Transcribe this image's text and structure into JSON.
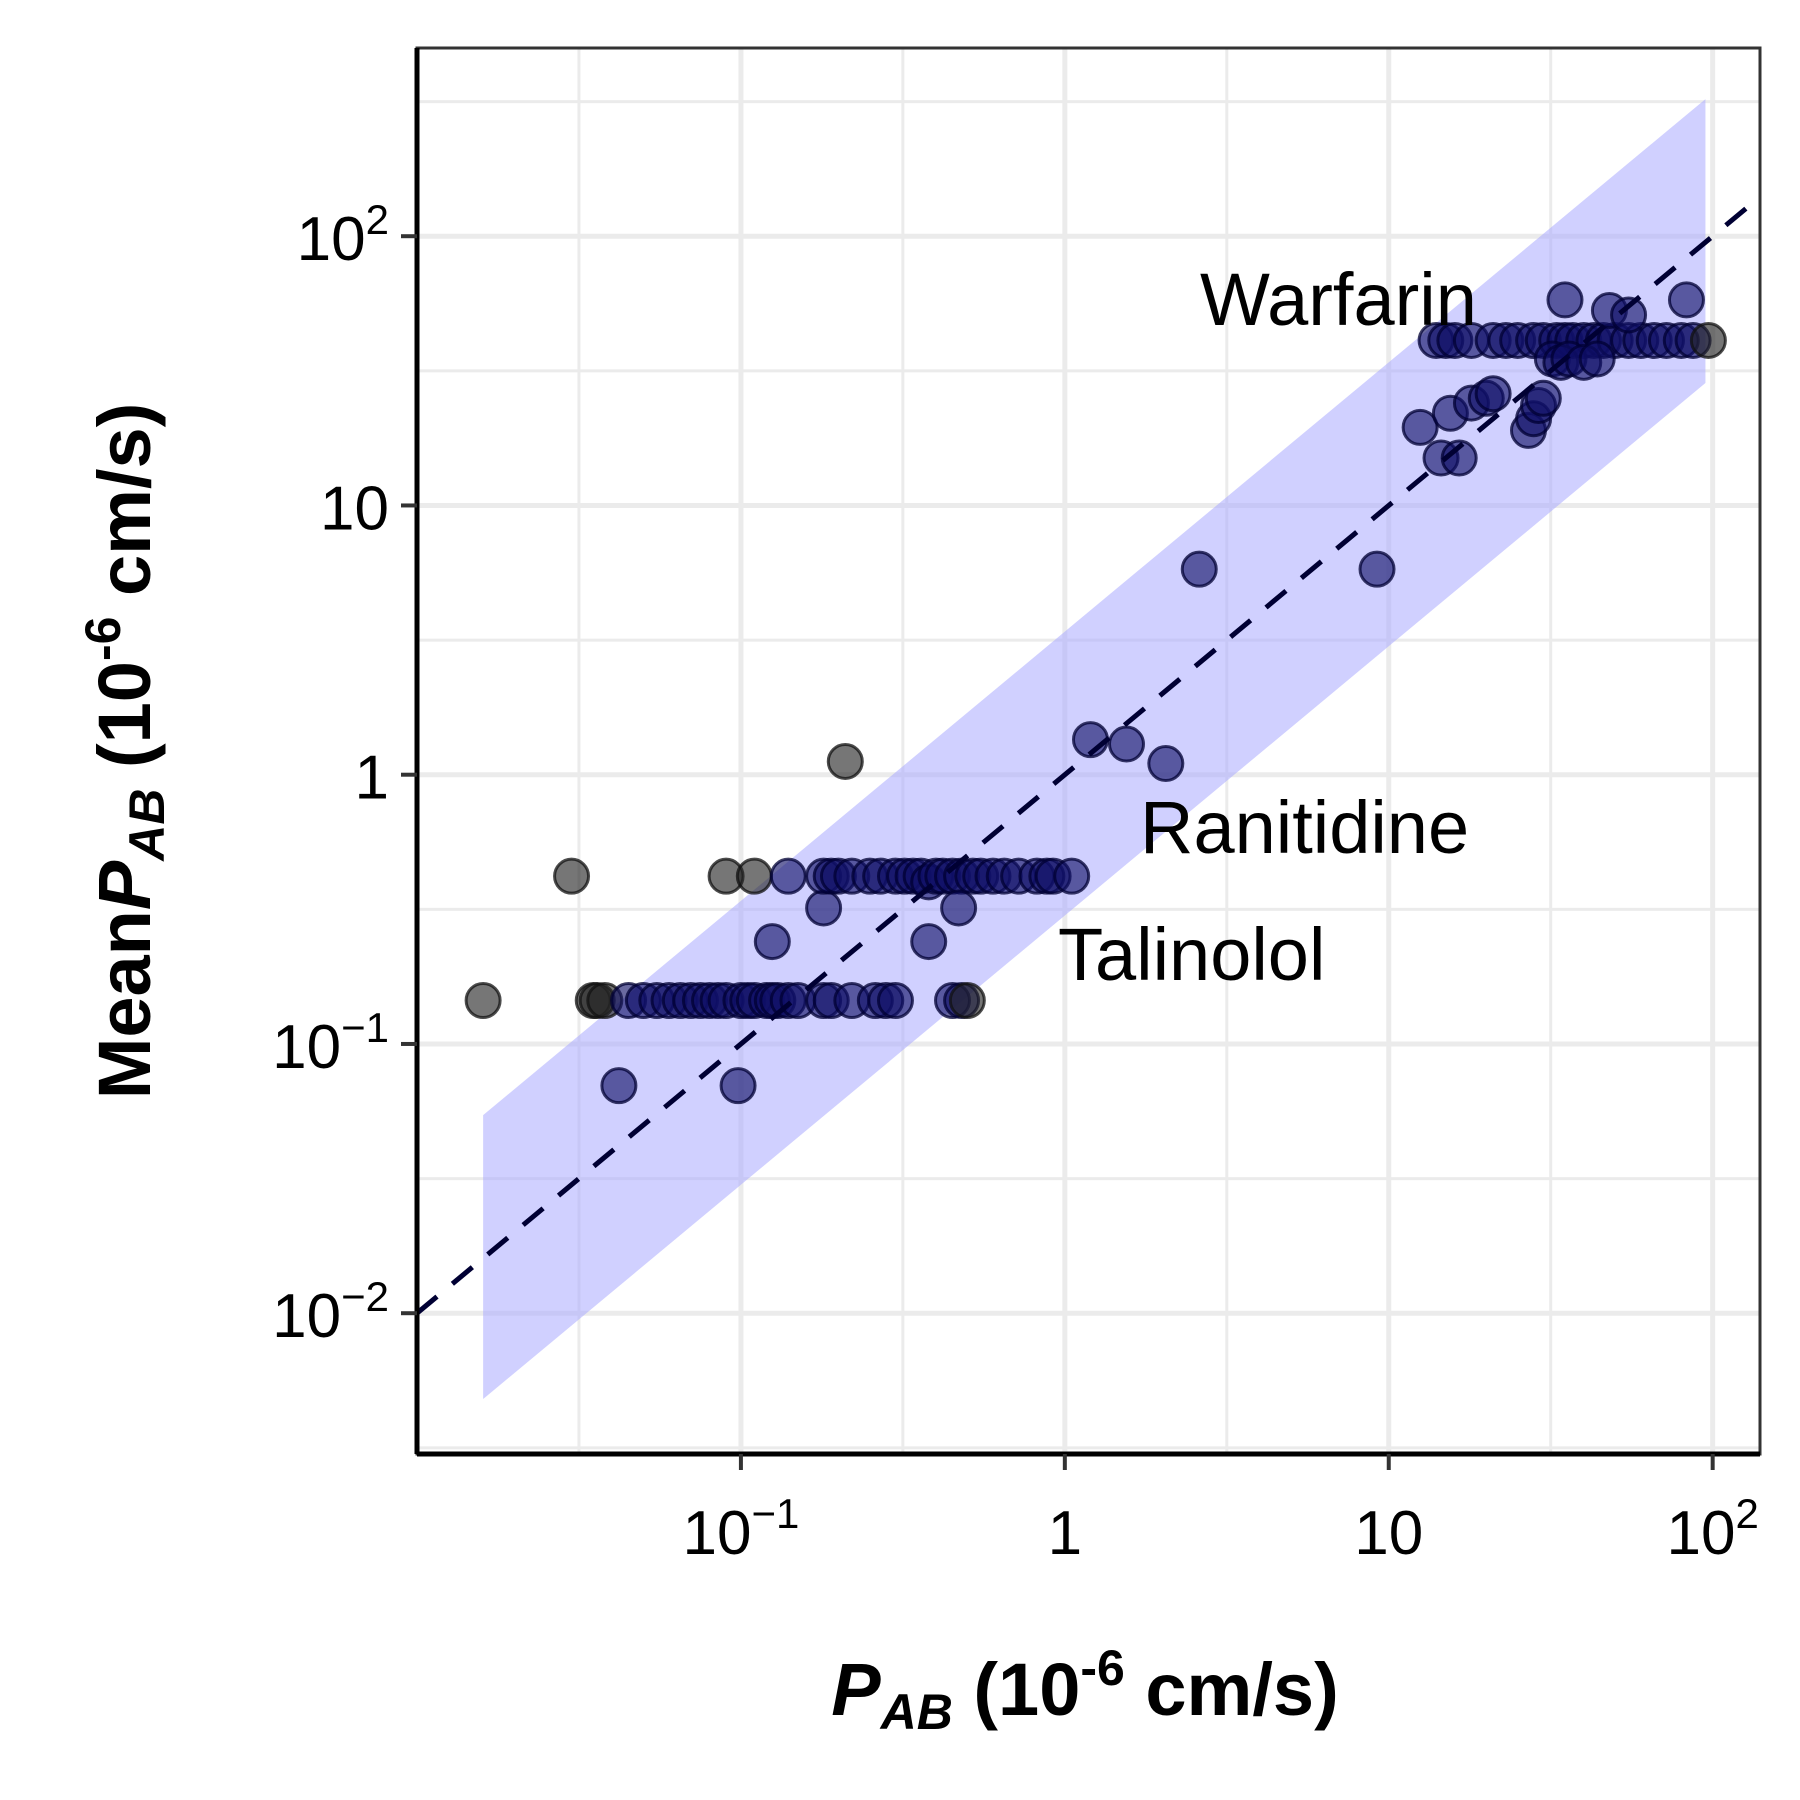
{
  "chart_data": {
    "type": "scatter",
    "x_scale": "log",
    "y_scale": "log",
    "xlim": [
      0.01,
      140
    ],
    "ylim": [
      0.003,
      500
    ],
    "grid": true,
    "x_ticks": [
      {
        "value": 0.1,
        "base": "10",
        "exp": "−1"
      },
      {
        "value": 1,
        "base": "1",
        "exp": ""
      },
      {
        "value": 10,
        "base": "10",
        "exp": ""
      },
      {
        "value": 100,
        "base": "10",
        "exp": "2"
      }
    ],
    "y_ticks": [
      {
        "value": 0.01,
        "base": "10",
        "exp": "−2"
      },
      {
        "value": 0.1,
        "base": "10",
        "exp": "−1"
      },
      {
        "value": 1,
        "base": "1",
        "exp": ""
      },
      {
        "value": 10,
        "base": "10",
        "exp": ""
      },
      {
        "value": 100,
        "base": "10",
        "exp": "2"
      }
    ],
    "xlabel": {
      "main": "P",
      "sub": "AB",
      "rest": " (10",
      "sup": "-6",
      "end": " cm/s)"
    },
    "ylabel": {
      "prefix": "Mean",
      "main": "P",
      "sub": "AB",
      "rest": " (10",
      "sup": "-6",
      "end": " cm/s)"
    },
    "annotations": [
      "Warfarin",
      "Ranitidine",
      "Talinolol"
    ],
    "identity_line": {
      "x": [
        0.01,
        140
      ],
      "y": [
        0.01,
        140
      ],
      "color": "#000033",
      "style": "dashed"
    },
    "band": {
      "x": [
        0.016,
        95
      ],
      "lower_factor": 0.3,
      "upper_factor": 3.4,
      "color": "#aaaaff",
      "opacity": 0.55
    },
    "point_colors": {
      "inside": "#0f0f66",
      "outside": "#222222"
    },
    "points": [
      {
        "x": 0.016,
        "y": 0.145
      },
      {
        "x": 0.03,
        "y": 0.42
      },
      {
        "x": 0.035,
        "y": 0.145
      },
      {
        "x": 0.036,
        "y": 0.145
      },
      {
        "x": 0.038,
        "y": 0.145
      },
      {
        "x": 0.042,
        "y": 0.07
      },
      {
        "x": 0.045,
        "y": 0.145
      },
      {
        "x": 0.05,
        "y": 0.145
      },
      {
        "x": 0.055,
        "y": 0.145
      },
      {
        "x": 0.06,
        "y": 0.145
      },
      {
        "x": 0.065,
        "y": 0.145
      },
      {
        "x": 0.07,
        "y": 0.145
      },
      {
        "x": 0.075,
        "y": 0.145
      },
      {
        "x": 0.08,
        "y": 0.145
      },
      {
        "x": 0.085,
        "y": 0.145
      },
      {
        "x": 0.09,
        "y": 0.145
      },
      {
        "x": 0.098,
        "y": 0.07
      },
      {
        "x": 0.1,
        "y": 0.145
      },
      {
        "x": 0.105,
        "y": 0.145
      },
      {
        "x": 0.11,
        "y": 0.145
      },
      {
        "x": 0.12,
        "y": 0.145
      },
      {
        "x": 0.125,
        "y": 0.145
      },
      {
        "x": 0.13,
        "y": 0.145
      },
      {
        "x": 0.14,
        "y": 0.145
      },
      {
        "x": 0.15,
        "y": 0.145
      },
      {
        "x": 0.18,
        "y": 0.145
      },
      {
        "x": 0.19,
        "y": 0.145
      },
      {
        "x": 0.22,
        "y": 0.145
      },
      {
        "x": 0.26,
        "y": 0.145
      },
      {
        "x": 0.28,
        "y": 0.145
      },
      {
        "x": 0.3,
        "y": 0.145
      },
      {
        "x": 0.45,
        "y": 0.145
      },
      {
        "x": 0.48,
        "y": 0.145
      },
      {
        "x": 0.5,
        "y": 0.145
      },
      {
        "x": 0.09,
        "y": 0.42
      },
      {
        "x": 0.11,
        "y": 0.42
      },
      {
        "x": 0.14,
        "y": 0.42
      },
      {
        "x": 0.125,
        "y": 0.24
      },
      {
        "x": 0.18,
        "y": 0.32
      },
      {
        "x": 0.18,
        "y": 0.42
      },
      {
        "x": 0.19,
        "y": 0.42
      },
      {
        "x": 0.2,
        "y": 0.42
      },
      {
        "x": 0.22,
        "y": 0.42
      },
      {
        "x": 0.25,
        "y": 0.42
      },
      {
        "x": 0.27,
        "y": 0.42
      },
      {
        "x": 0.3,
        "y": 0.42
      },
      {
        "x": 0.32,
        "y": 0.42
      },
      {
        "x": 0.34,
        "y": 0.42
      },
      {
        "x": 0.36,
        "y": 0.42
      },
      {
        "x": 0.38,
        "y": 0.4
      },
      {
        "x": 0.4,
        "y": 0.42
      },
      {
        "x": 0.42,
        "y": 0.42
      },
      {
        "x": 0.45,
        "y": 0.42
      },
      {
        "x": 0.48,
        "y": 0.42
      },
      {
        "x": 0.52,
        "y": 0.42
      },
      {
        "x": 0.55,
        "y": 0.42
      },
      {
        "x": 0.6,
        "y": 0.42
      },
      {
        "x": 0.65,
        "y": 0.42
      },
      {
        "x": 0.72,
        "y": 0.42
      },
      {
        "x": 0.82,
        "y": 0.42
      },
      {
        "x": 0.88,
        "y": 0.42
      },
      {
        "x": 0.92,
        "y": 0.42
      },
      {
        "x": 0.38,
        "y": 0.24
      },
      {
        "x": 0.47,
        "y": 0.32
      },
      {
        "x": 1.05,
        "y": 0.42
      },
      {
        "x": 0.21,
        "y": 1.12
      },
      {
        "x": 1.2,
        "y": 1.35
      },
      {
        "x": 1.55,
        "y": 1.3
      },
      {
        "x": 2.05,
        "y": 1.1
      },
      {
        "x": 2.6,
        "y": 5.8
      },
      {
        "x": 9.2,
        "y": 5.8
      },
      {
        "x": 12.5,
        "y": 19.5
      },
      {
        "x": 14.5,
        "y": 15
      },
      {
        "x": 15.5,
        "y": 22
      },
      {
        "x": 16.5,
        "y": 15
      },
      {
        "x": 18,
        "y": 24
      },
      {
        "x": 20,
        "y": 25
      },
      {
        "x": 21,
        "y": 26
      },
      {
        "x": 27,
        "y": 19
      },
      {
        "x": 28,
        "y": 21
      },
      {
        "x": 29,
        "y": 23.5
      },
      {
        "x": 30,
        "y": 25
      },
      {
        "x": 14,
        "y": 41
      },
      {
        "x": 15,
        "y": 41
      },
      {
        "x": 16,
        "y": 41
      },
      {
        "x": 18,
        "y": 41
      },
      {
        "x": 21,
        "y": 41
      },
      {
        "x": 23,
        "y": 41
      },
      {
        "x": 25,
        "y": 41
      },
      {
        "x": 28,
        "y": 41
      },
      {
        "x": 30,
        "y": 41
      },
      {
        "x": 33,
        "y": 41
      },
      {
        "x": 35,
        "y": 41
      },
      {
        "x": 37,
        "y": 41
      },
      {
        "x": 40,
        "y": 41
      },
      {
        "x": 43,
        "y": 41
      },
      {
        "x": 46,
        "y": 41
      },
      {
        "x": 50,
        "y": 41
      },
      {
        "x": 55,
        "y": 41
      },
      {
        "x": 60,
        "y": 41
      },
      {
        "x": 66,
        "y": 41
      },
      {
        "x": 72,
        "y": 41
      },
      {
        "x": 80,
        "y": 41
      },
      {
        "x": 87,
        "y": 41
      },
      {
        "x": 97,
        "y": 41
      },
      {
        "x": 32,
        "y": 35
      },
      {
        "x": 34,
        "y": 34
      },
      {
        "x": 36,
        "y": 35
      },
      {
        "x": 40,
        "y": 34
      },
      {
        "x": 44,
        "y": 35
      },
      {
        "x": 35,
        "y": 58
      },
      {
        "x": 48,
        "y": 53
      },
      {
        "x": 55,
        "y": 51
      },
      {
        "x": 83,
        "y": 58
      }
    ]
  }
}
